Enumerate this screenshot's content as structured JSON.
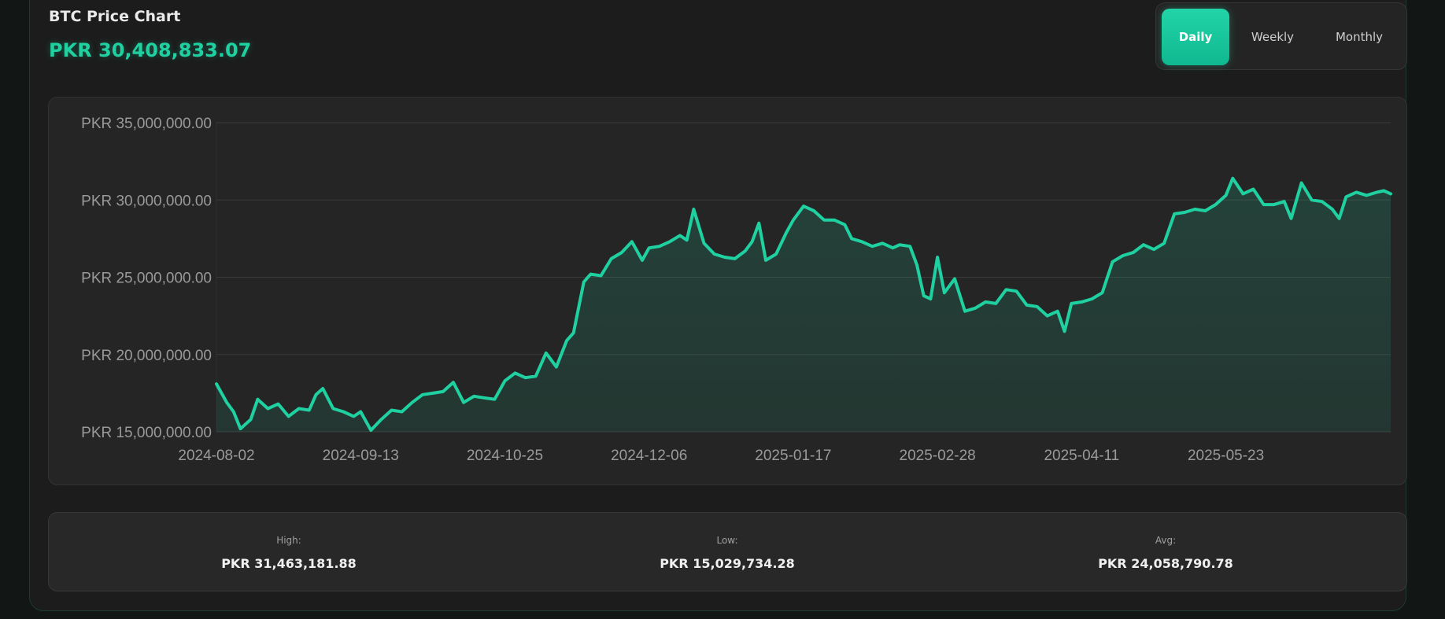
{
  "header": {
    "title": "BTC Price Chart",
    "current_price": "PKR 30,408,833.07"
  },
  "tabs": [
    {
      "label": "Daily",
      "active": true
    },
    {
      "label": "Weekly",
      "active": false
    },
    {
      "label": "Monthly",
      "active": false
    }
  ],
  "stats": {
    "high_label": "High:",
    "high_value": "PKR 31,463,181.88",
    "low_label": "Low:",
    "low_value": "PKR 15,029,734.28",
    "avg_label": "Avg:",
    "avg_value": "PKR 24,058,790.78"
  },
  "colors": {
    "accent": "#1fd1a1",
    "background": "#1c1c1c",
    "card": "#252525",
    "grid": "#3a3a3a"
  },
  "chart_data": {
    "type": "area",
    "title": "",
    "xlabel": "",
    "ylabel": "",
    "ylim": [
      15000000,
      35000000
    ],
    "ytick_values": [
      15000000,
      20000000,
      25000000,
      30000000,
      35000000
    ],
    "ytick_labels": [
      "PKR 15,000,000.00",
      "PKR 20,000,000.00",
      "PKR 25,000,000.00",
      "PKR 30,000,000.00",
      "PKR 35,000,000.00"
    ],
    "xtick_labels": [
      "2024-08-02",
      "2024-09-13",
      "2024-10-25",
      "2024-12-06",
      "2025-01-17",
      "2025-02-28",
      "2025-04-11",
      "2025-05-23"
    ],
    "xlim": [
      "2024-08-02",
      "2025-07-10"
    ],
    "grid": true,
    "series": [
      {
        "color": "#1fd1a1",
        "points": [
          [
            "2024-08-02",
            18100000
          ],
          [
            "2024-08-05",
            16900000
          ],
          [
            "2024-08-07",
            16300000
          ],
          [
            "2024-08-09",
            15200000
          ],
          [
            "2024-08-12",
            15800000
          ],
          [
            "2024-08-14",
            17100000
          ],
          [
            "2024-08-17",
            16500000
          ],
          [
            "2024-08-20",
            16800000
          ],
          [
            "2024-08-23",
            16000000
          ],
          [
            "2024-08-26",
            16500000
          ],
          [
            "2024-08-29",
            16400000
          ],
          [
            "2024-08-31",
            17400000
          ],
          [
            "2024-09-02",
            17800000
          ],
          [
            "2024-09-05",
            16500000
          ],
          [
            "2024-09-08",
            16300000
          ],
          [
            "2024-09-11",
            16000000
          ],
          [
            "2024-09-13",
            16300000
          ],
          [
            "2024-09-16",
            15100000
          ],
          [
            "2024-09-19",
            15800000
          ],
          [
            "2024-09-22",
            16400000
          ],
          [
            "2024-09-25",
            16300000
          ],
          [
            "2024-09-28",
            16900000
          ],
          [
            "2024-10-01",
            17400000
          ],
          [
            "2024-10-04",
            17500000
          ],
          [
            "2024-10-07",
            17600000
          ],
          [
            "2024-10-10",
            18200000
          ],
          [
            "2024-10-13",
            16900000
          ],
          [
            "2024-10-16",
            17300000
          ],
          [
            "2024-10-19",
            17200000
          ],
          [
            "2024-10-22",
            17100000
          ],
          [
            "2024-10-25",
            18300000
          ],
          [
            "2024-10-28",
            18800000
          ],
          [
            "2024-10-31",
            18500000
          ],
          [
            "2024-11-03",
            18600000
          ],
          [
            "2024-11-06",
            20100000
          ],
          [
            "2024-11-09",
            19200000
          ],
          [
            "2024-11-12",
            20900000
          ],
          [
            "2024-11-14",
            21400000
          ],
          [
            "2024-11-17",
            24700000
          ],
          [
            "2024-11-19",
            25200000
          ],
          [
            "2024-11-22",
            25100000
          ],
          [
            "2024-11-25",
            26200000
          ],
          [
            "2024-11-28",
            26600000
          ],
          [
            "2024-12-01",
            27300000
          ],
          [
            "2024-12-04",
            26100000
          ],
          [
            "2024-12-06",
            26900000
          ],
          [
            "2024-12-09",
            27000000
          ],
          [
            "2024-12-12",
            27300000
          ],
          [
            "2024-12-15",
            27700000
          ],
          [
            "2024-12-17",
            27400000
          ],
          [
            "2024-12-19",
            29400000
          ],
          [
            "2024-12-22",
            27200000
          ],
          [
            "2024-12-25",
            26500000
          ],
          [
            "2024-12-28",
            26300000
          ],
          [
            "2024-12-31",
            26200000
          ],
          [
            "2025-01-03",
            26700000
          ],
          [
            "2025-01-05",
            27300000
          ],
          [
            "2025-01-07",
            28500000
          ],
          [
            "2025-01-09",
            26100000
          ],
          [
            "2025-01-12",
            26500000
          ],
          [
            "2025-01-15",
            27900000
          ],
          [
            "2025-01-17",
            28700000
          ],
          [
            "2025-01-20",
            29600000
          ],
          [
            "2025-01-23",
            29300000
          ],
          [
            "2025-01-26",
            28700000
          ],
          [
            "2025-01-29",
            28700000
          ],
          [
            "2025-02-01",
            28400000
          ],
          [
            "2025-02-03",
            27500000
          ],
          [
            "2025-02-06",
            27300000
          ],
          [
            "2025-02-09",
            27000000
          ],
          [
            "2025-02-12",
            27200000
          ],
          [
            "2025-02-15",
            26900000
          ],
          [
            "2025-02-17",
            27100000
          ],
          [
            "2025-02-20",
            27000000
          ],
          [
            "2025-02-22",
            25800000
          ],
          [
            "2025-02-24",
            23800000
          ],
          [
            "2025-02-26",
            23600000
          ],
          [
            "2025-02-28",
            26300000
          ],
          [
            "2025-03-02",
            24000000
          ],
          [
            "2025-03-05",
            24900000
          ],
          [
            "2025-03-08",
            22800000
          ],
          [
            "2025-03-11",
            23000000
          ],
          [
            "2025-03-14",
            23400000
          ],
          [
            "2025-03-17",
            23300000
          ],
          [
            "2025-03-20",
            24200000
          ],
          [
            "2025-03-23",
            24100000
          ],
          [
            "2025-03-26",
            23200000
          ],
          [
            "2025-03-29",
            23100000
          ],
          [
            "2025-04-01",
            22500000
          ],
          [
            "2025-04-04",
            22800000
          ],
          [
            "2025-04-06",
            21500000
          ],
          [
            "2025-04-08",
            23300000
          ],
          [
            "2025-04-11",
            23400000
          ],
          [
            "2025-04-14",
            23600000
          ],
          [
            "2025-04-17",
            24000000
          ],
          [
            "2025-04-20",
            26000000
          ],
          [
            "2025-04-23",
            26400000
          ],
          [
            "2025-04-26",
            26600000
          ],
          [
            "2025-04-29",
            27100000
          ],
          [
            "2025-05-02",
            26800000
          ],
          [
            "2025-05-05",
            27200000
          ],
          [
            "2025-05-08",
            29100000
          ],
          [
            "2025-05-11",
            29200000
          ],
          [
            "2025-05-14",
            29400000
          ],
          [
            "2025-05-17",
            29300000
          ],
          [
            "2025-05-20",
            29700000
          ],
          [
            "2025-05-23",
            30300000
          ],
          [
            "2025-05-25",
            31400000
          ],
          [
            "2025-05-28",
            30400000
          ],
          [
            "2025-05-31",
            30700000
          ],
          [
            "2025-06-03",
            29700000
          ],
          [
            "2025-06-06",
            29700000
          ],
          [
            "2025-06-09",
            29900000
          ],
          [
            "2025-06-11",
            28800000
          ],
          [
            "2025-06-14",
            31100000
          ],
          [
            "2025-06-17",
            30000000
          ],
          [
            "2025-06-20",
            29900000
          ],
          [
            "2025-06-23",
            29400000
          ],
          [
            "2025-06-25",
            28800000
          ],
          [
            "2025-06-27",
            30200000
          ],
          [
            "2025-06-30",
            30500000
          ],
          [
            "2025-07-03",
            30300000
          ],
          [
            "2025-07-06",
            30500000
          ],
          [
            "2025-07-08",
            30600000
          ],
          [
            "2025-07-10",
            30400000
          ]
        ]
      }
    ]
  }
}
